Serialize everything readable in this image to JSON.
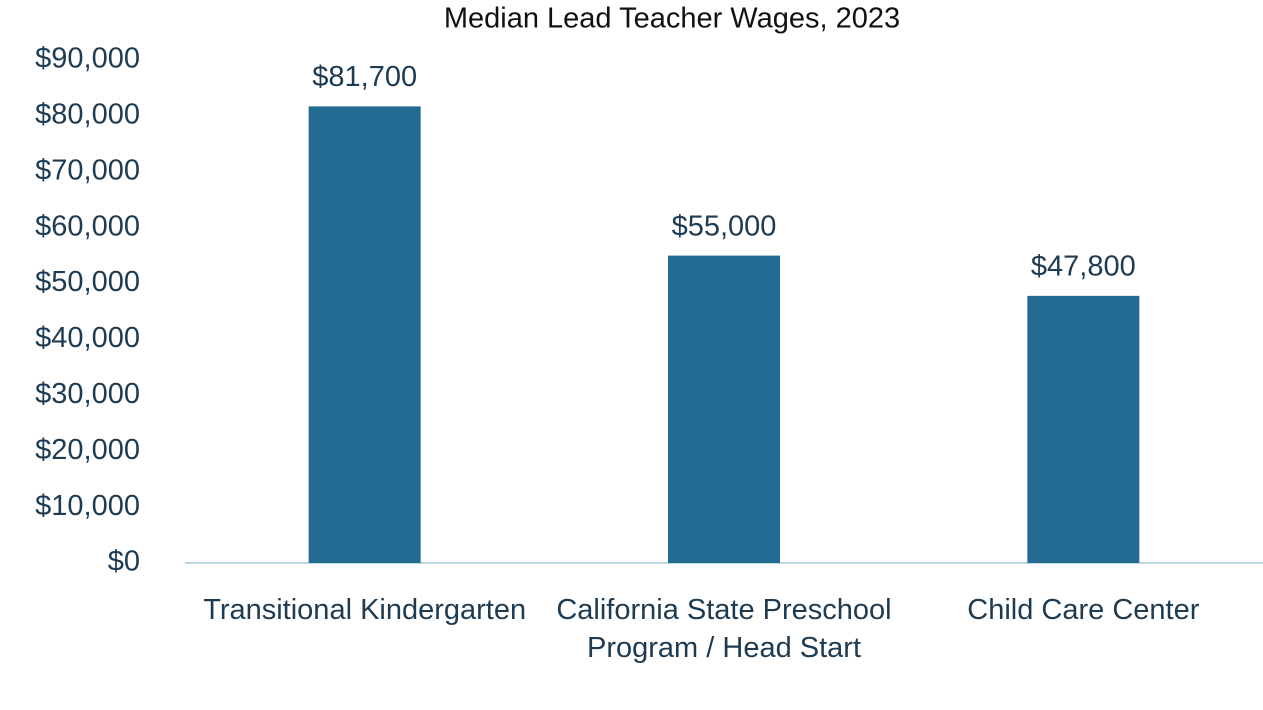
{
  "chart_data": {
    "type": "bar",
    "title": "Median Lead Teacher Wages, 2023",
    "categories": [
      "Transitional Kindergarten",
      "California State Preschool Program / Head Start",
      "Child Care Center"
    ],
    "values": [
      81700,
      55000,
      47800
    ],
    "value_labels": [
      "$81,700",
      "$55,000",
      "$47,800"
    ],
    "color": "#246b93",
    "ylim": [
      0,
      90000
    ],
    "yticks": [
      {
        "value": 0,
        "label": "$0"
      },
      {
        "value": 10000,
        "label": "$10,000"
      },
      {
        "value": 20000,
        "label": "$20,000"
      },
      {
        "value": 30000,
        "label": "$30,000"
      },
      {
        "value": 40000,
        "label": "$40,000"
      },
      {
        "value": 50000,
        "label": "$50,000"
      },
      {
        "value": 60000,
        "label": "$60,000"
      },
      {
        "value": 70000,
        "label": "$70,000"
      },
      {
        "value": 80000,
        "label": "$80,000"
      },
      {
        "value": 90000,
        "label": "$90,000"
      }
    ],
    "grid": false
  }
}
